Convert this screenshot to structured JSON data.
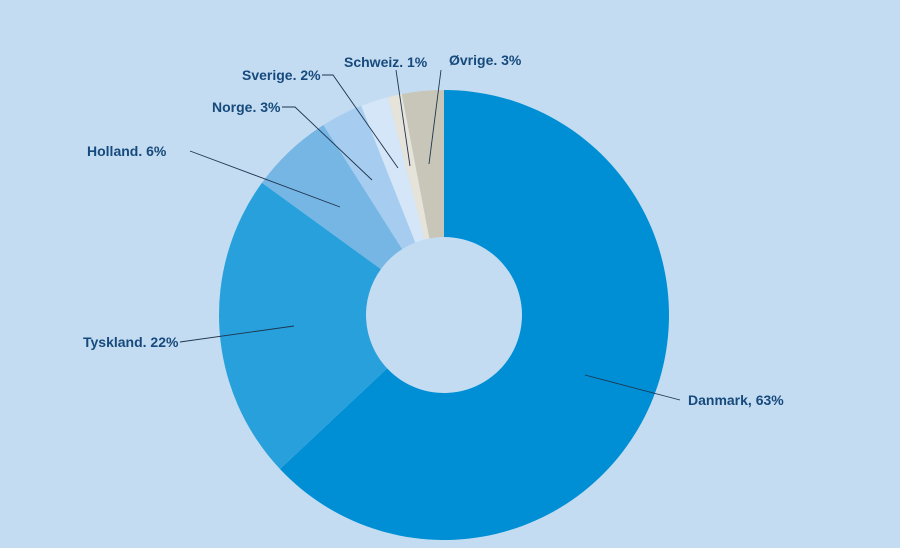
{
  "background": "#c3dcf2",
  "chart_data": {
    "type": "pie",
    "variant": "donut",
    "categories": [
      "Danmark",
      "Tyskland",
      "Holland",
      "Norge",
      "Sverige",
      "Schweiz",
      "Øvrige"
    ],
    "values": [
      63,
      22,
      6,
      3,
      2,
      1,
      3
    ],
    "unit": "%",
    "labels": [
      "Danmark, 63%",
      "Tyskland. 22%",
      "Holland. 6%",
      "Norge. 3%",
      "Sverige. 2%",
      "Schweiz. 1%",
      "Øvrige. 3%"
    ],
    "colors": [
      "#008fd5",
      "#27a0dc",
      "#76b6e4",
      "#a6cdef",
      "#d4e6f7",
      "#e6e3da",
      "#c8c6b8"
    ],
    "title": "",
    "legend": "none (labels with leader lines)"
  }
}
